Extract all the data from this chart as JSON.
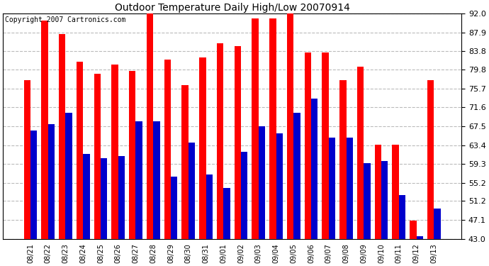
{
  "title": "Outdoor Temperature Daily High/Low 20070914",
  "copyright": "Copyright 2007 Cartronics.com",
  "dates": [
    "08/21",
    "08/22",
    "08/23",
    "08/24",
    "08/25",
    "08/26",
    "08/27",
    "08/28",
    "08/29",
    "08/30",
    "08/31",
    "09/01",
    "09/02",
    "09/03",
    "09/04",
    "09/05",
    "09/06",
    "09/07",
    "09/08",
    "09/09",
    "09/10",
    "09/11",
    "09/12",
    "09/13"
  ],
  "highs": [
    77.5,
    90.5,
    87.5,
    81.5,
    79.0,
    81.0,
    79.5,
    93.5,
    82.0,
    76.5,
    82.5,
    85.5,
    85.0,
    91.0,
    91.0,
    92.5,
    83.5,
    83.5,
    77.5,
    80.5,
    63.5,
    63.5,
    47.0,
    77.5
  ],
  "lows": [
    66.5,
    68.0,
    70.5,
    61.5,
    60.5,
    61.0,
    68.5,
    68.5,
    56.5,
    64.0,
    57.0,
    54.0,
    62.0,
    67.5,
    66.0,
    70.5,
    73.5,
    65.0,
    65.0,
    59.5,
    60.0,
    52.5,
    43.5,
    49.5
  ],
  "high_color": "#ff0000",
  "low_color": "#0000cc",
  "bg_color": "#ffffff",
  "grid_color": "#bbbbbb",
  "ylim_min": 43.0,
  "ylim_max": 92.0,
  "yticks": [
    43.0,
    47.1,
    51.2,
    55.2,
    59.3,
    63.4,
    67.5,
    71.6,
    75.7,
    79.8,
    83.8,
    87.9,
    92.0
  ],
  "bar_width": 0.38
}
